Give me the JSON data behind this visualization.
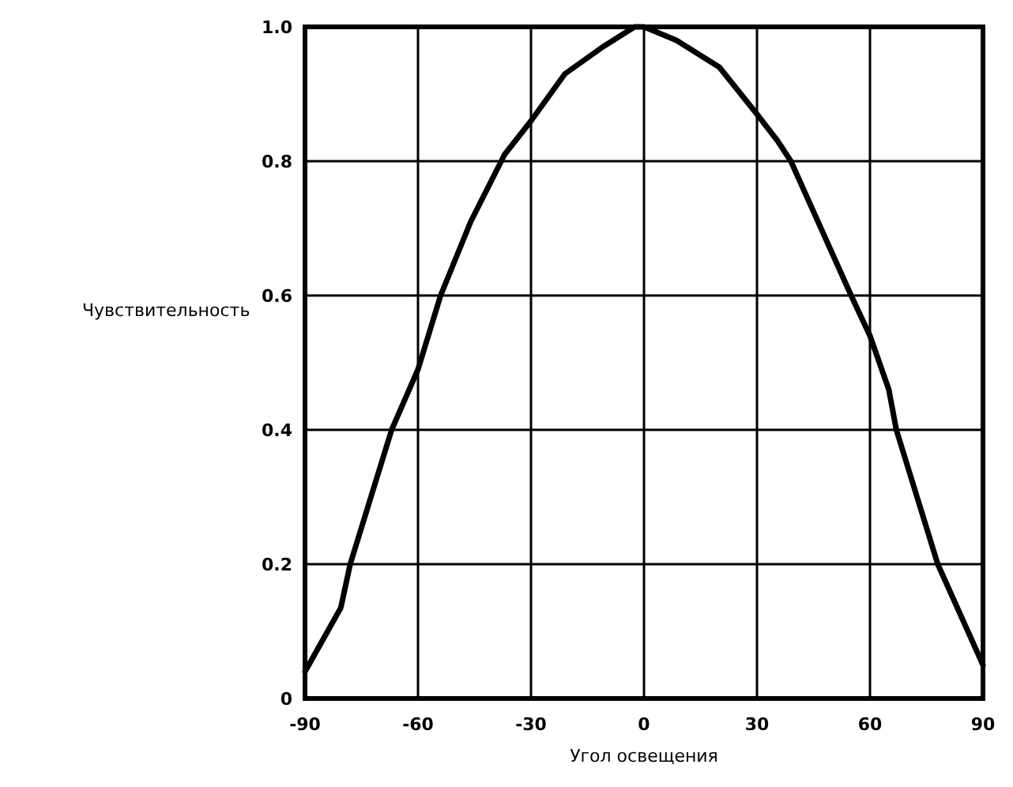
{
  "chart_data": {
    "type": "line",
    "xlabel": "Угол освещения",
    "ylabel": "Чувствительность",
    "x": [
      -90,
      -80.5,
      -78,
      -67,
      -60,
      -54,
      -46,
      -37,
      -30,
      -21,
      -11,
      -2.5,
      0,
      8.6,
      20,
      30,
      35.5,
      39,
      55,
      60,
      65,
      67,
      78,
      90
    ],
    "series": [
      {
        "color": "#000000",
        "values": [
          0.04,
          0.135,
          0.2,
          0.4,
          0.49,
          0.6,
          0.71,
          0.81,
          0.86,
          0.93,
          0.97,
          1.0,
          1.0,
          0.98,
          0.94,
          0.87,
          0.83,
          0.8,
          0.6,
          0.54,
          0.46,
          0.4,
          0.2,
          0.05
        ]
      }
    ],
    "xlim": [
      -90,
      90
    ],
    "xticks": [
      -90,
      -60,
      -30,
      0,
      30,
      60,
      90
    ],
    "ylim": [
      0,
      1
    ],
    "yticks": [
      0,
      0.2,
      0.4,
      0.6,
      0.8,
      {
        "value": 1,
        "label": "1.0"
      }
    ],
    "grid": true,
    "marker": "none",
    "line_style": "solid"
  }
}
